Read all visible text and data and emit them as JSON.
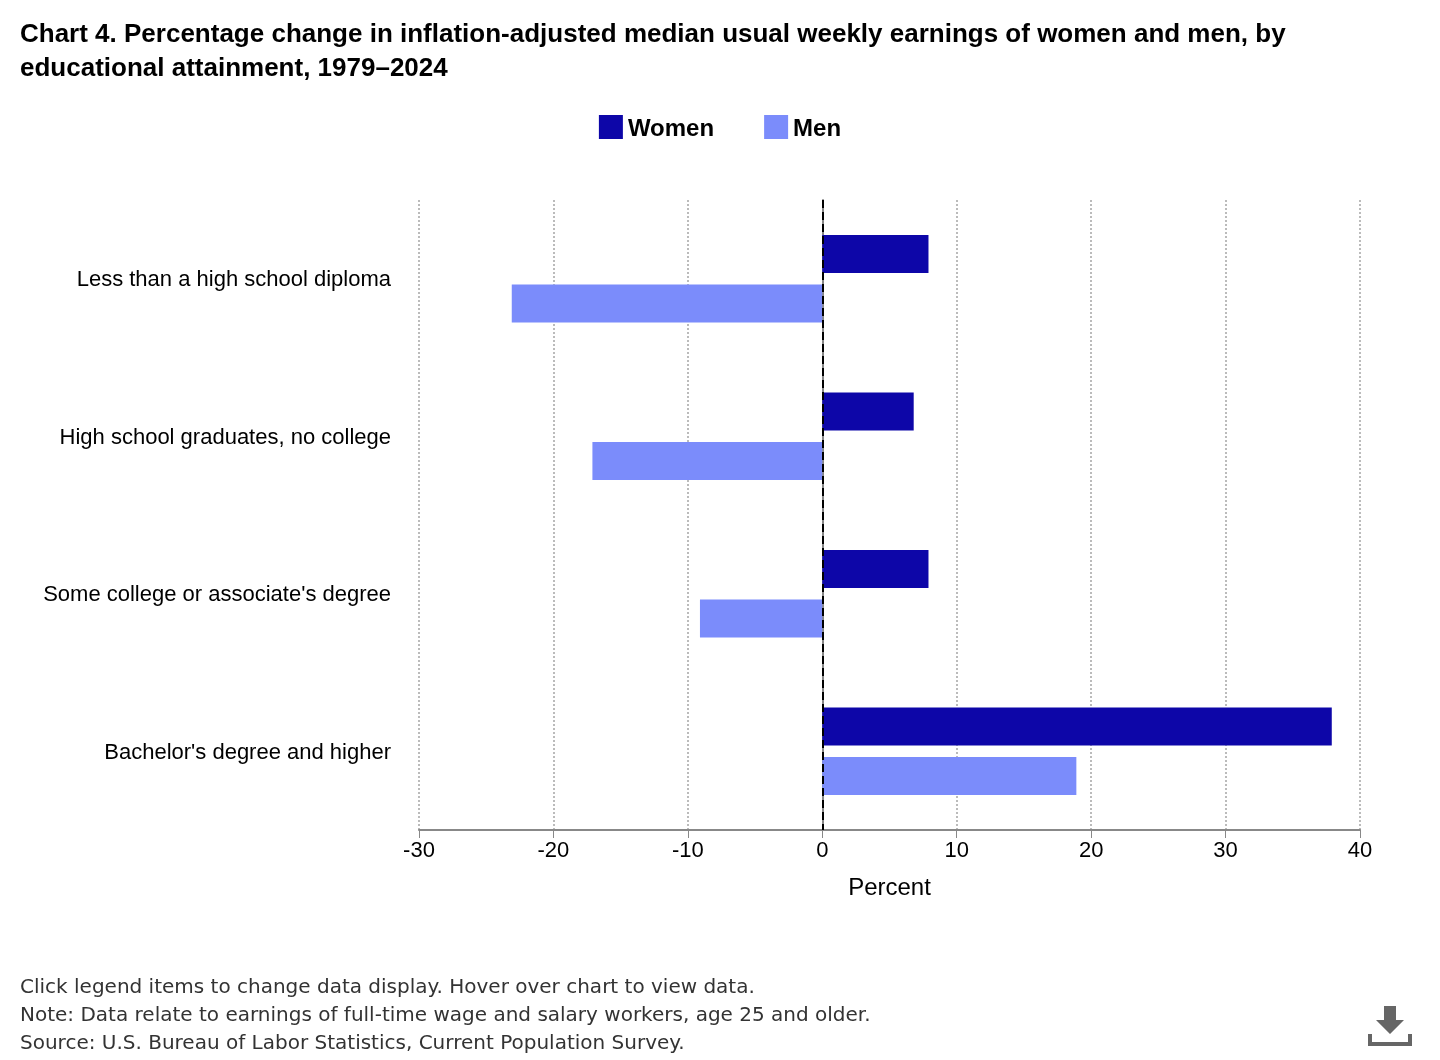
{
  "chart_data": {
    "type": "bar",
    "orientation": "horizontal",
    "title": "Chart 4. Percentage change in inflation-adjusted median usual weekly earnings of women and men, by educational attainment, 1979–2024",
    "categories": [
      "Less than a high school diploma",
      "High school graduates, no college",
      "Some college or associate's degree",
      "Bachelor's degree and higher"
    ],
    "series": [
      {
        "name": "Women",
        "color": "#0d06a8",
        "values": [
          7.9,
          6.8,
          7.9,
          37.9
        ]
      },
      {
        "name": "Men",
        "color": "#7b8cfb",
        "values": [
          -23.1,
          -17.1,
          -9.1,
          18.9
        ]
      }
    ],
    "xlim": [
      -30,
      40
    ],
    "xticks": [
      -30,
      -20,
      -10,
      0,
      10,
      20,
      30,
      40
    ],
    "xlabel": "Percent",
    "grid": "x",
    "legend": "top",
    "ref_lines": [
      {
        "axis": "x",
        "value": 0,
        "line_style": "dashed",
        "color": "#000000"
      }
    ],
    "annotations": [
      "Click legend items to change data display. Hover over chart to view data.",
      "Note: Data relate to earnings of full-time wage and salary workers, age 25 and older.",
      "Source: U.S. Bureau of Labor Statistics, Current Population Survey."
    ]
  }
}
